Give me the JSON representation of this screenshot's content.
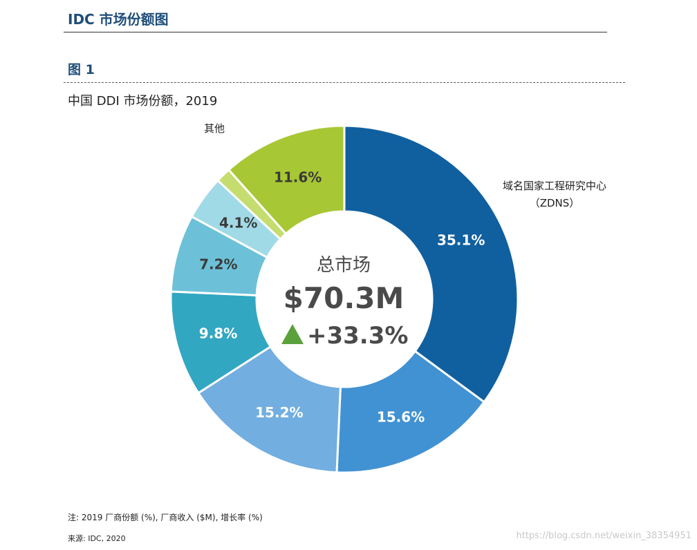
{
  "header": {
    "title": "IDC 市场份额图"
  },
  "figure": {
    "label": "图 1"
  },
  "chart_data": {
    "type": "pie",
    "style": "donut",
    "title": "中国 DDI 市场份额，2019",
    "slices": [
      {
        "label": "域名国家工程研究中心",
        "label_line2": "（ZDNS）",
        "value": 35.1,
        "value_label": "35.1%",
        "color": "#1060a0"
      },
      {
        "label": "",
        "value": 15.6,
        "value_label": "15.6%",
        "color": "#4192d3"
      },
      {
        "label": "",
        "value": 15.2,
        "value_label": "15.2%",
        "color": "#72aee0"
      },
      {
        "label": "",
        "value": 9.8,
        "value_label": "9.8%",
        "color": "#32a7c2"
      },
      {
        "label": "",
        "value": 7.2,
        "value_label": "7.2%",
        "color": "#6cc1d8"
      },
      {
        "label": "",
        "value": 4.1,
        "value_label": "4.1%",
        "color": "#a0dae6"
      },
      {
        "label": "",
        "value": 1.4,
        "value_label": "",
        "color": "#c5dc6e"
      },
      {
        "label": "其他",
        "value": 11.6,
        "value_label": "11.6%",
        "color": "#a8c734"
      }
    ],
    "center": {
      "title": "总市场",
      "value": "$70.3M",
      "growth": "+33.3%",
      "growth_color": "#5aa13c"
    }
  },
  "footer": {
    "note": "注: 2019 厂商份额 (%), 厂商收入 ($M), 增长率 (%)",
    "source": "来源: IDC, 2020"
  },
  "watermark": "https://blog.csdn.net/weixin_38354951"
}
